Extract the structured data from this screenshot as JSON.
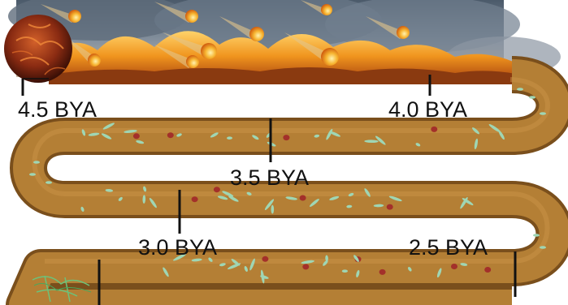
{
  "timeline": {
    "markers": [
      {
        "label": "4.5 BYA"
      },
      {
        "label": "4.0 BYA"
      },
      {
        "label": "3.5 BYA"
      },
      {
        "label": "3.0 BYA"
      },
      {
        "label": "2.5 BYA"
      }
    ]
  },
  "colors": {
    "tube": "#b47f35",
    "tube_edge": "#7a4f1c",
    "microbe": "#9fd6b4",
    "red_cell": "#a3302a",
    "fire": "#e88a1c",
    "smoke": "#7a8794",
    "marker": "#111111"
  },
  "icons": {
    "planet": "molten-earth-icon",
    "meteors": "meteor-icon",
    "microbes": "bacteria-icon",
    "stromatolite": "green-filament-icon"
  }
}
